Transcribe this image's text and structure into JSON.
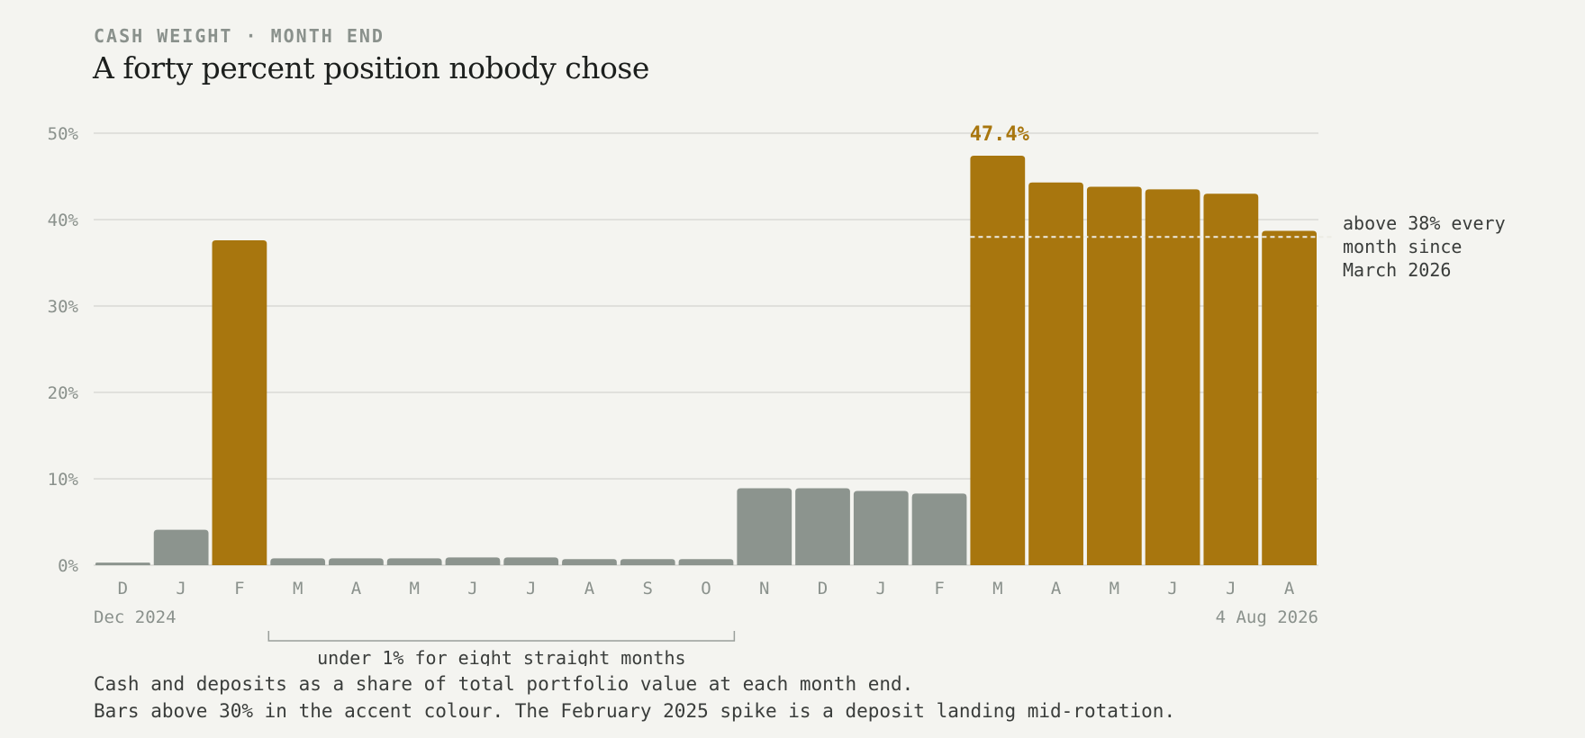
{
  "kicker": "CASH WEIGHT · MONTH END",
  "title": "A forty percent position nobody chose",
  "caption": {
    "line1": "Cash and deposits as a share of total portfolio value at each month end.",
    "line2": "Bars above 30% in the accent colour. The February 2025 spike is a deposit landing mid-rotation."
  },
  "colors": {
    "accent": "#a8760e",
    "muted": "#8c948e",
    "grid": "#d9dad5",
    "axis_text": "#8a918c",
    "annotation_text": "#3a3d3b",
    "background": "#f4f4f0"
  },
  "chart_data": {
    "type": "bar",
    "categories": [
      "D",
      "J",
      "F",
      "M",
      "A",
      "M",
      "J",
      "J",
      "A",
      "S",
      "O",
      "N",
      "D",
      "J",
      "F",
      "M",
      "A",
      "M",
      "J",
      "J",
      "A"
    ],
    "values": [
      0.3,
      4.1,
      37.6,
      0.8,
      0.8,
      0.8,
      0.9,
      0.9,
      0.7,
      0.7,
      0.7,
      8.9,
      8.9,
      8.6,
      8.3,
      47.4,
      44.3,
      43.8,
      43.5,
      43.0,
      38.7
    ],
    "highlight_threshold": 30,
    "ylim": [
      0,
      50
    ],
    "yticks": [
      0,
      10,
      20,
      30,
      40,
      50
    ],
    "ytick_labels": [
      "0%",
      "10%",
      "20%",
      "30%",
      "40%",
      "50%"
    ],
    "grid": true,
    "start_label": "Dec 2024",
    "end_label": "4 Aug 2026",
    "max_label": "47.4%",
    "max_index": 15,
    "reference_line": {
      "value": 38,
      "from_index": 15,
      "to_index": 20,
      "label": [
        "above 38% every",
        "month since",
        "March 2026"
      ]
    },
    "bracket": {
      "from_index": 3,
      "to_index": 10,
      "label": "under 1% for eight straight months"
    }
  }
}
